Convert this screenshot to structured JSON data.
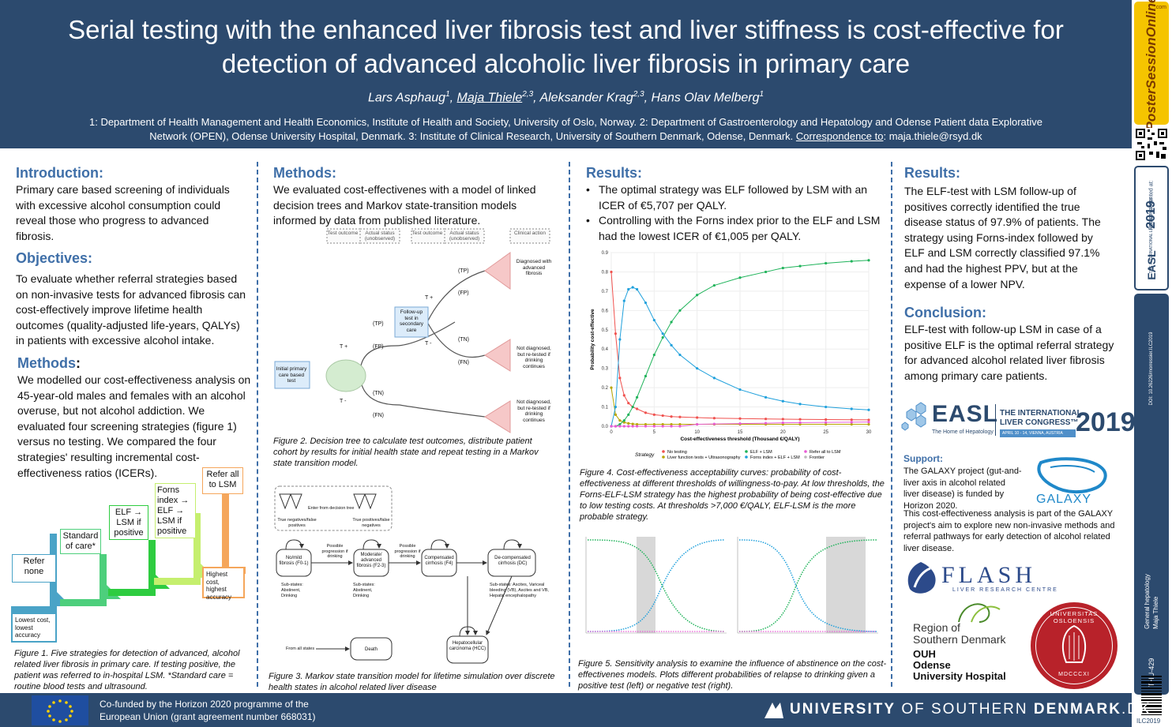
{
  "header": {
    "title_line1": "Serial testing with the enhanced liver fibrosis test and liver stiffness is cost-effective for",
    "title_line2": "detection of advanced alcoholic liver fibrosis in primary care",
    "authors": [
      {
        "name": "Lars Asphaug",
        "sup": "1"
      },
      {
        "name": "Maja Thiele",
        "sup": "2,3"
      },
      {
        "name": "Aleksander Krag",
        "sup": "2,3"
      },
      {
        "name": "Hans Olav Melberg",
        "sup": "1"
      }
    ],
    "affil_line1": "1: Department of Health Management and Health Economics, Institute of Health and Society, University of Oslo, Norway. 2: Department of Gastroenterology and Hepatology and Odense Patient data Explorative",
    "affil_line2": "Network (OPEN), Odense University Hospital, Denmark. 3: Institute of Clinical Research, University of Southern Denmark, Odense, Denmark.",
    "correspondence_label": "Correspondence to",
    "correspondence_email": ": maja.thiele@rsyd.dk"
  },
  "sidebar": {
    "pso_logo": "PosterSessionOnline",
    "pso_sub": ".com",
    "presented_at": "Poster presented at:",
    "easl_vert": "EASL",
    "congress_vert": "THE INTERNATIONAL LIVER CONGRESS",
    "year_vert": "2019",
    "doi": "DOI: 10.26226/morressier.ILC2019",
    "category": "General hepatology",
    "author": "Maja Thiele",
    "poster_id": "THU-429",
    "ilc": "ILC2019"
  },
  "col1": {
    "intro_title": "Introduction:",
    "intro_text": "Primary care based screening of individuals with excessive alcohol consumption could reveal those who progress to advanced fibrosis.",
    "obj_title": "Objectives:",
    "obj_text": "To evaluate whether referral strategies based on non-invasive tests for advanced fibrosis can cost-effectively improve lifetime health outcomes (quality-adjusted life-years, QALYs) in patients with excessive alcohol intake.",
    "methods_title": "Methods",
    "methods_colon": ":",
    "methods_text": "We modelled our cost-effectiveness analysis on 45-year-old males and females with an alcohol overuse, but not alcohol addiction. We evaluated four screening strategies (figure 1) versus no testing. We compared the four strategies' resulting incremental cost-effectiveness ratios (ICERs).",
    "stairs": [
      {
        "label": "Refer none",
        "color": "#4aa3c7"
      },
      {
        "label": "Standard of care*",
        "color": "#4dcf7c"
      },
      {
        "label": "ELF → LSM if positive",
        "color": "#2ecc40"
      },
      {
        "label": "Forns index → ELF → LSM if positive",
        "color": "#c5ef6e"
      },
      {
        "label": "Refer all to LSM",
        "color": "#f5a65b"
      }
    ],
    "low_label": "Lowest cost, lowest accuracy",
    "high_label": "Highest cost, highest accuracy",
    "fig1_caption": "Figure 1. Five strategies for detection of advanced, alcohol related liver fibrosis in primary care. If testing positive, the patient was referred to in-hospital LSM. *Standard care = routine blood tests and ultrasound."
  },
  "col2": {
    "methods_title": "Methods:",
    "methods_text": "We evaluated cost-effectivenes with a model of linked decision trees and Markov state-transition models informed by data from published literature.",
    "tree": {
      "head1": "Test outcome",
      "head2": "Actual status (unobserved)",
      "head3": "Test outcome",
      "head4": "Actual status (unobserved)",
      "head5": "Clinical action",
      "initial": "Initial primary care based test",
      "followup": "Follow-up test in secondary care",
      "tplus": "T +",
      "tminus": "T -",
      "tp": "(TP)",
      "fp": "(FP)",
      "tn": "(TN)",
      "fn": "(FN)",
      "diag": "Diagnosed with advanced fibrosis",
      "notdiag1": "Not diagnosed, but re-tested if drinking continues",
      "notdiag2": "Not diagnosed, but re-tested if drinking continues"
    },
    "fig2_caption": "Figure 2. Decision tree to calculate test outcomes, distribute patient cohort by results for initial health state and repeat testing in a Markov state transition model.",
    "markov": {
      "enter": "Enter from decision tree",
      "tn_fn": "True negatives/false positives",
      "tp_fn": "True positives/false negatives",
      "s1": "No/mild fibrosis (F0-1)",
      "s2": "Moderate/ advanced fibrosis (F2-3)",
      "s3": "Compensated cirrhosis (F4)",
      "s4": "De-compensated cirrhosis (DC)",
      "hcc": "Hepatocellular carcinoma (HCC)",
      "death": "Death",
      "from_all": "From all states",
      "prog1": "Possible progression if drinking",
      "prog2": "Possible progression if drinking",
      "sub1": "Sub-states: Abstinent, Drinking",
      "sub2": "Sub-states: Abstinent, Drinking",
      "sub4": "Sub-states: Ascites, Variceal bleeding (VB), Ascites and VB, Hepatic encephalopathy"
    },
    "fig3_caption": "Figure 3. Markov state transition model for lifetime simulation over discrete health states in alcohol related liver disease"
  },
  "col3": {
    "results_title": "Results:",
    "bullet1": "The optimal strategy was ELF followed by LSM with an ICER of €5,707 per QALY.",
    "bullet2": "Controlling with the Forns index prior to the ELF and LSM had the lowest ICER of €1,005 per QALY.",
    "fig4_caption": "Figure 4. Cost-effectiveness acceptability curves: probability of cost-effectiveness at different thresholds of willingness-to-pay. At low thresholds, the Forns-ELF-LSM strategy has the highest probability of being cost-effective due to low testing costs. At thresholds >7,000 €/QALY, ELF-LSM is the more probable strategy.",
    "fig5_caption": "Figure 5. Sensitivity analysis to examine the influence of abstinence on the cost-effectivenes models. Plots different probabilities of relapse to drinking given a positive test (left) or negative test (right)."
  },
  "chart_data": [
    {
      "type": "line",
      "xlabel": "Cost-effectiveness threshold (Thousand €/QALY)",
      "ylabel": "Probability cost-effective",
      "xlim": [
        0,
        30
      ],
      "ylim": [
        0,
        0.9
      ],
      "xticks": [
        0,
        5,
        10,
        15,
        20,
        25,
        30
      ],
      "yticks": [
        0.0,
        0.1,
        0.2,
        0.3,
        0.4,
        0.5,
        0.6,
        0.7,
        0.8,
        0.9
      ],
      "legend_title": "Strategy",
      "legend_position": "bottom",
      "x": [
        0,
        0.5,
        1,
        1.5,
        2,
        2.5,
        3,
        4,
        5,
        6,
        7,
        8,
        10,
        12,
        15,
        18,
        20,
        22,
        25,
        28,
        30
      ],
      "series": [
        {
          "name": "No testing",
          "color": "#f0524f",
          "values": [
            0.8,
            0.48,
            0.25,
            0.16,
            0.12,
            0.1,
            0.09,
            0.07,
            0.06,
            0.055,
            0.05,
            0.048,
            0.045,
            0.042,
            0.04,
            0.038,
            0.037,
            0.036,
            0.035,
            0.034,
            0.033
          ]
        },
        {
          "name": "Liver function tests + Ultrasonography",
          "color": "#b8a600",
          "values": [
            0.2,
            0.06,
            0.03,
            0.02,
            0.015,
            0.012,
            0.01,
            0.01,
            0.01,
            0.01,
            0.01,
            0.01,
            0.01,
            0.01,
            0.01,
            0.01,
            0.01,
            0.01,
            0.01,
            0.01,
            0.01
          ]
        },
        {
          "name": "ELF + LSM",
          "color": "#1fb35a",
          "values": [
            0.0,
            0.0,
            0.01,
            0.03,
            0.06,
            0.1,
            0.15,
            0.26,
            0.37,
            0.46,
            0.54,
            0.6,
            0.68,
            0.73,
            0.77,
            0.8,
            0.82,
            0.83,
            0.845,
            0.855,
            0.86
          ]
        },
        {
          "name": "Forns index + ELF + LSM",
          "color": "#1fa0dc",
          "values": [
            0.0,
            0.1,
            0.45,
            0.65,
            0.71,
            0.72,
            0.71,
            0.64,
            0.55,
            0.48,
            0.42,
            0.37,
            0.3,
            0.25,
            0.19,
            0.15,
            0.13,
            0.115,
            0.1,
            0.09,
            0.085
          ]
        },
        {
          "name": "Refer all to LSM",
          "color": "#e85bd6",
          "values": [
            0.0,
            0.0,
            0.0,
            0.0,
            0.0,
            0.0,
            0.0,
            0.0,
            0.0,
            0.0,
            0.0,
            0.0,
            0.01,
            0.012,
            0.014,
            0.016,
            0.018,
            0.019,
            0.02,
            0.021,
            0.022
          ]
        }
      ],
      "frontier_name": "Frontier"
    }
  ],
  "col4": {
    "results_title": "Results:",
    "results_text": "The ELF-test with LSM follow-up of positives correctly identified the true disease status of 97.9% of patients. The strategy using Forns-index followed by ELF and LSM correctly classified 97.1% and had the highest PPV, but at the expense of a lower NPV.",
    "conclusion_title": "Conclusion:",
    "conclusion_text": "ELF-test with follow-up LSM in case of a positive ELF is the optimal referral strategy for advanced alcohol related liver fibrosis among primary care patients.",
    "easl": "EASL",
    "easl_sub": "The Home of Hepatology",
    "ilc_line1": "THE INTERNATIONAL",
    "ilc_line2": "LIVER CONGRESS™",
    "ilc_year": "2019",
    "ilc_date": "APRIL 10 - 14, VIENNA, AUSTRIA",
    "support_title": "Support:",
    "support_text1": "The GALAXY project (gut-and-liver axis in alcohol related liver disease) is funded by Horizon 2020.",
    "support_text2": "This cost-effectiveness analysis is part of the GALAXY project's aim to explore new non-invasive methods and referral pathways for early detection of alcohol related liver disease.",
    "galaxy": "GALAXY",
    "flash": "FLASH",
    "flash_sub": "LIVER RESEARCH CENTRE",
    "region1": "Region of",
    "region2": "Southern Denmark",
    "ouh1": "OUH",
    "ouh2": "Odense",
    "ouh3": "University Hospital",
    "seal_text": "UNIVERSITAS OSLOENSIS",
    "seal_year": "MDCCCXI"
  },
  "footer": {
    "eu_text1": "Co-funded by the Horizon 2020 programme of the",
    "eu_text2": "European Union (grant agreement number 668031)",
    "sdu_bold1": "UNIVERSITY",
    "sdu_light": "OF SOUTHERN",
    "sdu_bold2": "DENMARK",
    "sdu_dk": ".DK"
  }
}
